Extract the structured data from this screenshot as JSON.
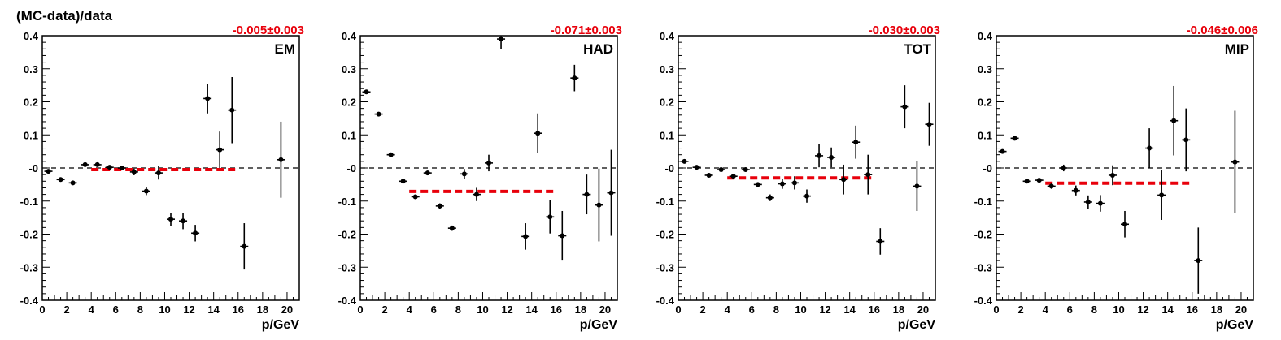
{
  "figure": {
    "ylabel": "(MC-data)/data"
  },
  "colors": {
    "fit_line": "#e8000b",
    "fit_text": "#e8000b",
    "points": "#000000",
    "zero_line": "#000000"
  },
  "chart_data": [
    {
      "type": "scatter",
      "label": "EM",
      "fit_text": "-0.005±0.003",
      "xlabel": "p/GeV",
      "ylabel": "(MC-data)/data",
      "xlim": [
        0,
        21
      ],
      "ylim": [
        -0.4,
        0.4
      ],
      "x_ticks": [
        "0",
        "2",
        "4",
        "6",
        "8",
        "10",
        "12",
        "14",
        "16",
        "18",
        "20"
      ],
      "y_ticks": [
        "-0.4",
        "-0.3",
        "-0.2",
        "-0.1",
        "-0",
        "0.1",
        "0.2",
        "0.3",
        "0.4"
      ],
      "grid": false,
      "zero_line": true,
      "fit": {
        "value": -0.005,
        "error": 0.003,
        "x_range": [
          4,
          16
        ]
      },
      "points": [
        {
          "x": 0.5,
          "y": -0.01,
          "yerr": 0.004
        },
        {
          "x": 1.5,
          "y": -0.035,
          "yerr": 0.004
        },
        {
          "x": 2.5,
          "y": -0.045,
          "yerr": 0.004
        },
        {
          "x": 3.5,
          "y": 0.01,
          "yerr": 0.006
        },
        {
          "x": 4.5,
          "y": 0.01,
          "yerr": 0.006
        },
        {
          "x": 5.5,
          "y": 0.002,
          "yerr": 0.005
        },
        {
          "x": 6.5,
          "y": 0.0,
          "yerr": 0.006
        },
        {
          "x": 7.5,
          "y": -0.012,
          "yerr": 0.01
        },
        {
          "x": 8.5,
          "y": -0.07,
          "yerr": 0.012
        },
        {
          "x": 9.5,
          "y": -0.015,
          "yerr": 0.02
        },
        {
          "x": 10.5,
          "y": -0.155,
          "yerr": 0.02
        },
        {
          "x": 11.5,
          "y": -0.16,
          "yerr": 0.025
        },
        {
          "x": 12.5,
          "y": -0.197,
          "yerr": 0.025
        },
        {
          "x": 13.5,
          "y": 0.21,
          "yerr": 0.045
        },
        {
          "x": 14.5,
          "y": 0.055,
          "yerr": 0.055
        },
        {
          "x": 15.5,
          "y": 0.175,
          "yerr": 0.1
        },
        {
          "x": 16.5,
          "y": -0.237,
          "yerr": 0.07
        },
        {
          "x": 19.5,
          "y": 0.025,
          "yerr": 0.115
        }
      ]
    },
    {
      "type": "scatter",
      "label": "HAD",
      "fit_text": "-0.071±0.003",
      "xlabel": "p/GeV",
      "ylabel": "(MC-data)/data",
      "xlim": [
        0,
        21
      ],
      "ylim": [
        -0.4,
        0.4
      ],
      "x_ticks": [
        "0",
        "2",
        "4",
        "6",
        "8",
        "10",
        "12",
        "14",
        "16",
        "18",
        "20"
      ],
      "y_ticks": [
        "-0.4",
        "-0.3",
        "-0.2",
        "-0.1",
        "-0",
        "0.1",
        "0.2",
        "0.3",
        "0.4"
      ],
      "grid": false,
      "zero_line": true,
      "fit": {
        "value": -0.071,
        "error": 0.003,
        "x_range": [
          4,
          16
        ]
      },
      "points": [
        {
          "x": 0.5,
          "y": 0.23,
          "yerr": 0.004
        },
        {
          "x": 1.5,
          "y": 0.163,
          "yerr": 0.004
        },
        {
          "x": 2.5,
          "y": 0.04,
          "yerr": 0.005
        },
        {
          "x": 3.5,
          "y": -0.04,
          "yerr": 0.005
        },
        {
          "x": 4.5,
          "y": -0.087,
          "yerr": 0.006
        },
        {
          "x": 5.5,
          "y": -0.015,
          "yerr": 0.007
        },
        {
          "x": 6.5,
          "y": -0.115,
          "yerr": 0.008
        },
        {
          "x": 7.5,
          "y": -0.182,
          "yerr": 0.008
        },
        {
          "x": 8.5,
          "y": -0.018,
          "yerr": 0.015
        },
        {
          "x": 9.5,
          "y": -0.08,
          "yerr": 0.02
        },
        {
          "x": 10.5,
          "y": 0.015,
          "yerr": 0.025
        },
        {
          "x": 11.5,
          "y": 0.39,
          "yerr": 0.03
        },
        {
          "x": 13.5,
          "y": -0.207,
          "yerr": 0.04
        },
        {
          "x": 14.5,
          "y": 0.105,
          "yerr": 0.06
        },
        {
          "x": 15.5,
          "y": -0.148,
          "yerr": 0.05
        },
        {
          "x": 16.5,
          "y": -0.205,
          "yerr": 0.075
        },
        {
          "x": 17.5,
          "y": 0.272,
          "yerr": 0.04
        },
        {
          "x": 18.5,
          "y": -0.08,
          "yerr": 0.06
        },
        {
          "x": 19.5,
          "y": -0.112,
          "yerr": 0.11
        },
        {
          "x": 20.5,
          "y": -0.075,
          "yerr": 0.13
        }
      ]
    },
    {
      "type": "scatter",
      "label": "TOT",
      "fit_text": "-0.030±0.003",
      "xlabel": "p/GeV",
      "ylabel": "(MC-data)/data",
      "xlim": [
        0,
        21
      ],
      "ylim": [
        -0.4,
        0.4
      ],
      "x_ticks": [
        "0",
        "2",
        "4",
        "6",
        "8",
        "10",
        "12",
        "14",
        "16",
        "18",
        "20"
      ],
      "y_ticks": [
        "-0.4",
        "-0.3",
        "-0.2",
        "-0.1",
        "-0",
        "0.1",
        "0.2",
        "0.3",
        "0.4"
      ],
      "grid": false,
      "zero_line": true,
      "fit": {
        "value": -0.03,
        "error": 0.003,
        "x_range": [
          4,
          16
        ]
      },
      "points": [
        {
          "x": 0.5,
          "y": 0.02,
          "yerr": 0.004
        },
        {
          "x": 1.5,
          "y": 0.002,
          "yerr": 0.004
        },
        {
          "x": 2.5,
          "y": -0.022,
          "yerr": 0.005
        },
        {
          "x": 3.5,
          "y": -0.005,
          "yerr": 0.005
        },
        {
          "x": 4.5,
          "y": -0.025,
          "yerr": 0.005
        },
        {
          "x": 5.5,
          "y": -0.005,
          "yerr": 0.006
        },
        {
          "x": 6.5,
          "y": -0.05,
          "yerr": 0.007
        },
        {
          "x": 7.5,
          "y": -0.09,
          "yerr": 0.01
        },
        {
          "x": 8.5,
          "y": -0.048,
          "yerr": 0.015
        },
        {
          "x": 9.5,
          "y": -0.045,
          "yerr": 0.02
        },
        {
          "x": 10.5,
          "y": -0.085,
          "yerr": 0.02
        },
        {
          "x": 11.5,
          "y": 0.037,
          "yerr": 0.035
        },
        {
          "x": 12.5,
          "y": 0.032,
          "yerr": 0.03
        },
        {
          "x": 13.5,
          "y": -0.035,
          "yerr": 0.045
        },
        {
          "x": 14.5,
          "y": 0.078,
          "yerr": 0.05
        },
        {
          "x": 15.5,
          "y": -0.02,
          "yerr": 0.06
        },
        {
          "x": 16.5,
          "y": -0.222,
          "yerr": 0.04
        },
        {
          "x": 18.5,
          "y": 0.185,
          "yerr": 0.065
        },
        {
          "x": 19.5,
          "y": -0.055,
          "yerr": 0.075
        },
        {
          "x": 20.5,
          "y": 0.132,
          "yerr": 0.065
        }
      ]
    },
    {
      "type": "scatter",
      "label": "MIP",
      "fit_text": "-0.046±0.006",
      "xlabel": "p/GeV",
      "ylabel": "(MC-data)/data",
      "xlim": [
        0,
        21
      ],
      "ylim": [
        -0.4,
        0.4
      ],
      "x_ticks": [
        "0",
        "2",
        "4",
        "6",
        "8",
        "10",
        "12",
        "14",
        "16",
        "18",
        "20"
      ],
      "y_ticks": [
        "-0.4",
        "-0.3",
        "-0.2",
        "-0.1",
        "-0",
        "0.1",
        "0.2",
        "0.3",
        "0.4"
      ],
      "grid": false,
      "zero_line": true,
      "fit": {
        "value": -0.046,
        "error": 0.006,
        "x_range": [
          4,
          16
        ]
      },
      "points": [
        {
          "x": 0.5,
          "y": 0.05,
          "yerr": 0.005
        },
        {
          "x": 1.5,
          "y": 0.09,
          "yerr": 0.005
        },
        {
          "x": 2.5,
          "y": -0.04,
          "yerr": 0.006
        },
        {
          "x": 3.5,
          "y": -0.037,
          "yerr": 0.006
        },
        {
          "x": 4.5,
          "y": -0.055,
          "yerr": 0.008
        },
        {
          "x": 5.5,
          "y": 0.0,
          "yerr": 0.01
        },
        {
          "x": 6.5,
          "y": -0.068,
          "yerr": 0.015
        },
        {
          "x": 7.5,
          "y": -0.103,
          "yerr": 0.02
        },
        {
          "x": 8.5,
          "y": -0.107,
          "yerr": 0.025
        },
        {
          "x": 9.5,
          "y": -0.022,
          "yerr": 0.03
        },
        {
          "x": 10.5,
          "y": -0.17,
          "yerr": 0.04
        },
        {
          "x": 12.5,
          "y": 0.06,
          "yerr": 0.06
        },
        {
          "x": 13.5,
          "y": -0.082,
          "yerr": 0.075
        },
        {
          "x": 14.5,
          "y": 0.143,
          "yerr": 0.105
        },
        {
          "x": 15.5,
          "y": 0.085,
          "yerr": 0.095
        },
        {
          "x": 16.5,
          "y": -0.28,
          "yerr": 0.1
        },
        {
          "x": 19.5,
          "y": 0.018,
          "yerr": 0.155
        }
      ]
    }
  ]
}
